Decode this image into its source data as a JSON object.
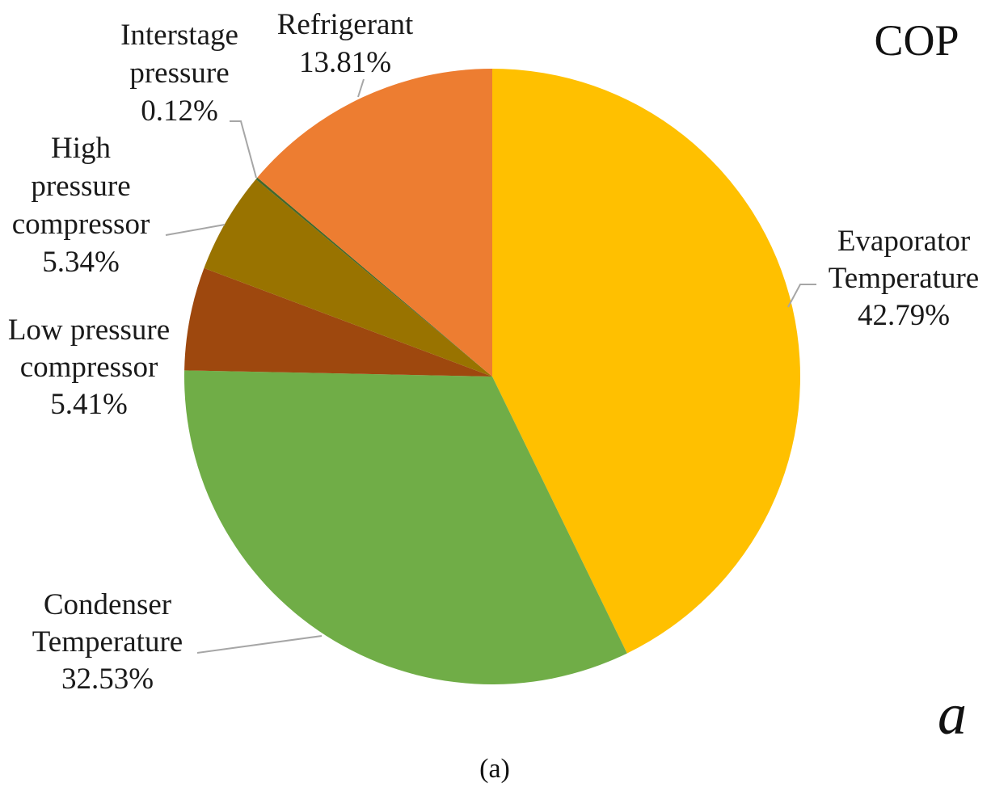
{
  "chart_data": {
    "type": "pie",
    "title": "COP",
    "panel_label": "a",
    "caption": "(a)",
    "start_angle_deg": 0,
    "direction": "clockwise",
    "slices": [
      {
        "name": "Evaporator Temperature",
        "value": 42.79,
        "value_label": "42.79%",
        "label_lines": [
          "Evaporator",
          "Temperature",
          "42.79%"
        ],
        "color": "#FFC000"
      },
      {
        "name": "Condenser Temperature",
        "value": 32.53,
        "value_label": "32.53%",
        "label_lines": [
          "Condenser",
          "Temperature",
          "32.53%"
        ],
        "color": "#70AD47"
      },
      {
        "name": "Low pressure compressor",
        "value": 5.41,
        "value_label": "5.41%",
        "label_lines": [
          "Low pressure",
          "compressor",
          "5.41%"
        ],
        "color": "#9E480E"
      },
      {
        "name": "High pressure compressor",
        "value": 5.34,
        "value_label": "5.34%",
        "label_lines": [
          "High",
          "pressure",
          "compressor",
          "5.34%"
        ],
        "color": "#997300"
      },
      {
        "name": "Interstage pressure",
        "value": 0.12,
        "value_label": "0.12%",
        "label_lines": [
          "Interstage",
          "pressure",
          "0.12%"
        ],
        "color": "#43682B"
      },
      {
        "name": "Refrigerant",
        "value": 13.81,
        "value_label": "13.81%",
        "label_lines": [
          "Refrigerant",
          "13.81%"
        ],
        "color": "#ED7D31"
      }
    ]
  }
}
